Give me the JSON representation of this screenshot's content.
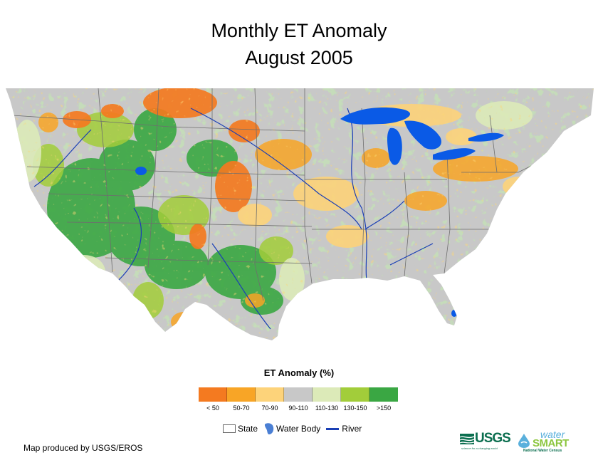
{
  "title": {
    "line1": "Monthly ET Anomaly",
    "line2": "August 2005"
  },
  "legend": {
    "title": "ET Anomaly (%)",
    "bins": [
      {
        "label": "< 50",
        "color": "#f47a20"
      },
      {
        "label": "50-70",
        "color": "#f8a526"
      },
      {
        "label": "70-90",
        "color": "#fdd37a"
      },
      {
        "label": "90-110",
        "color": "#c8c8c8"
      },
      {
        "label": "110-130",
        "color": "#dceab8"
      },
      {
        "label": "130-150",
        "color": "#a2cd3a"
      },
      {
        "label": ">150",
        "color": "#3aa743"
      }
    ],
    "symbols": {
      "state": "State",
      "water_body": "Water Body",
      "river": "River"
    }
  },
  "colors": {
    "water": "#0a5ae6",
    "river": "#1a3fb5",
    "state_border": "#6e6e6e"
  },
  "credit": "Map produced by USGS/EROS",
  "logos": {
    "usgs": {
      "name": "USGS",
      "tagline": "science for a changing world"
    },
    "watersmart": {
      "line1": "water",
      "line2": "SMART",
      "line3": "National Water Census"
    }
  }
}
